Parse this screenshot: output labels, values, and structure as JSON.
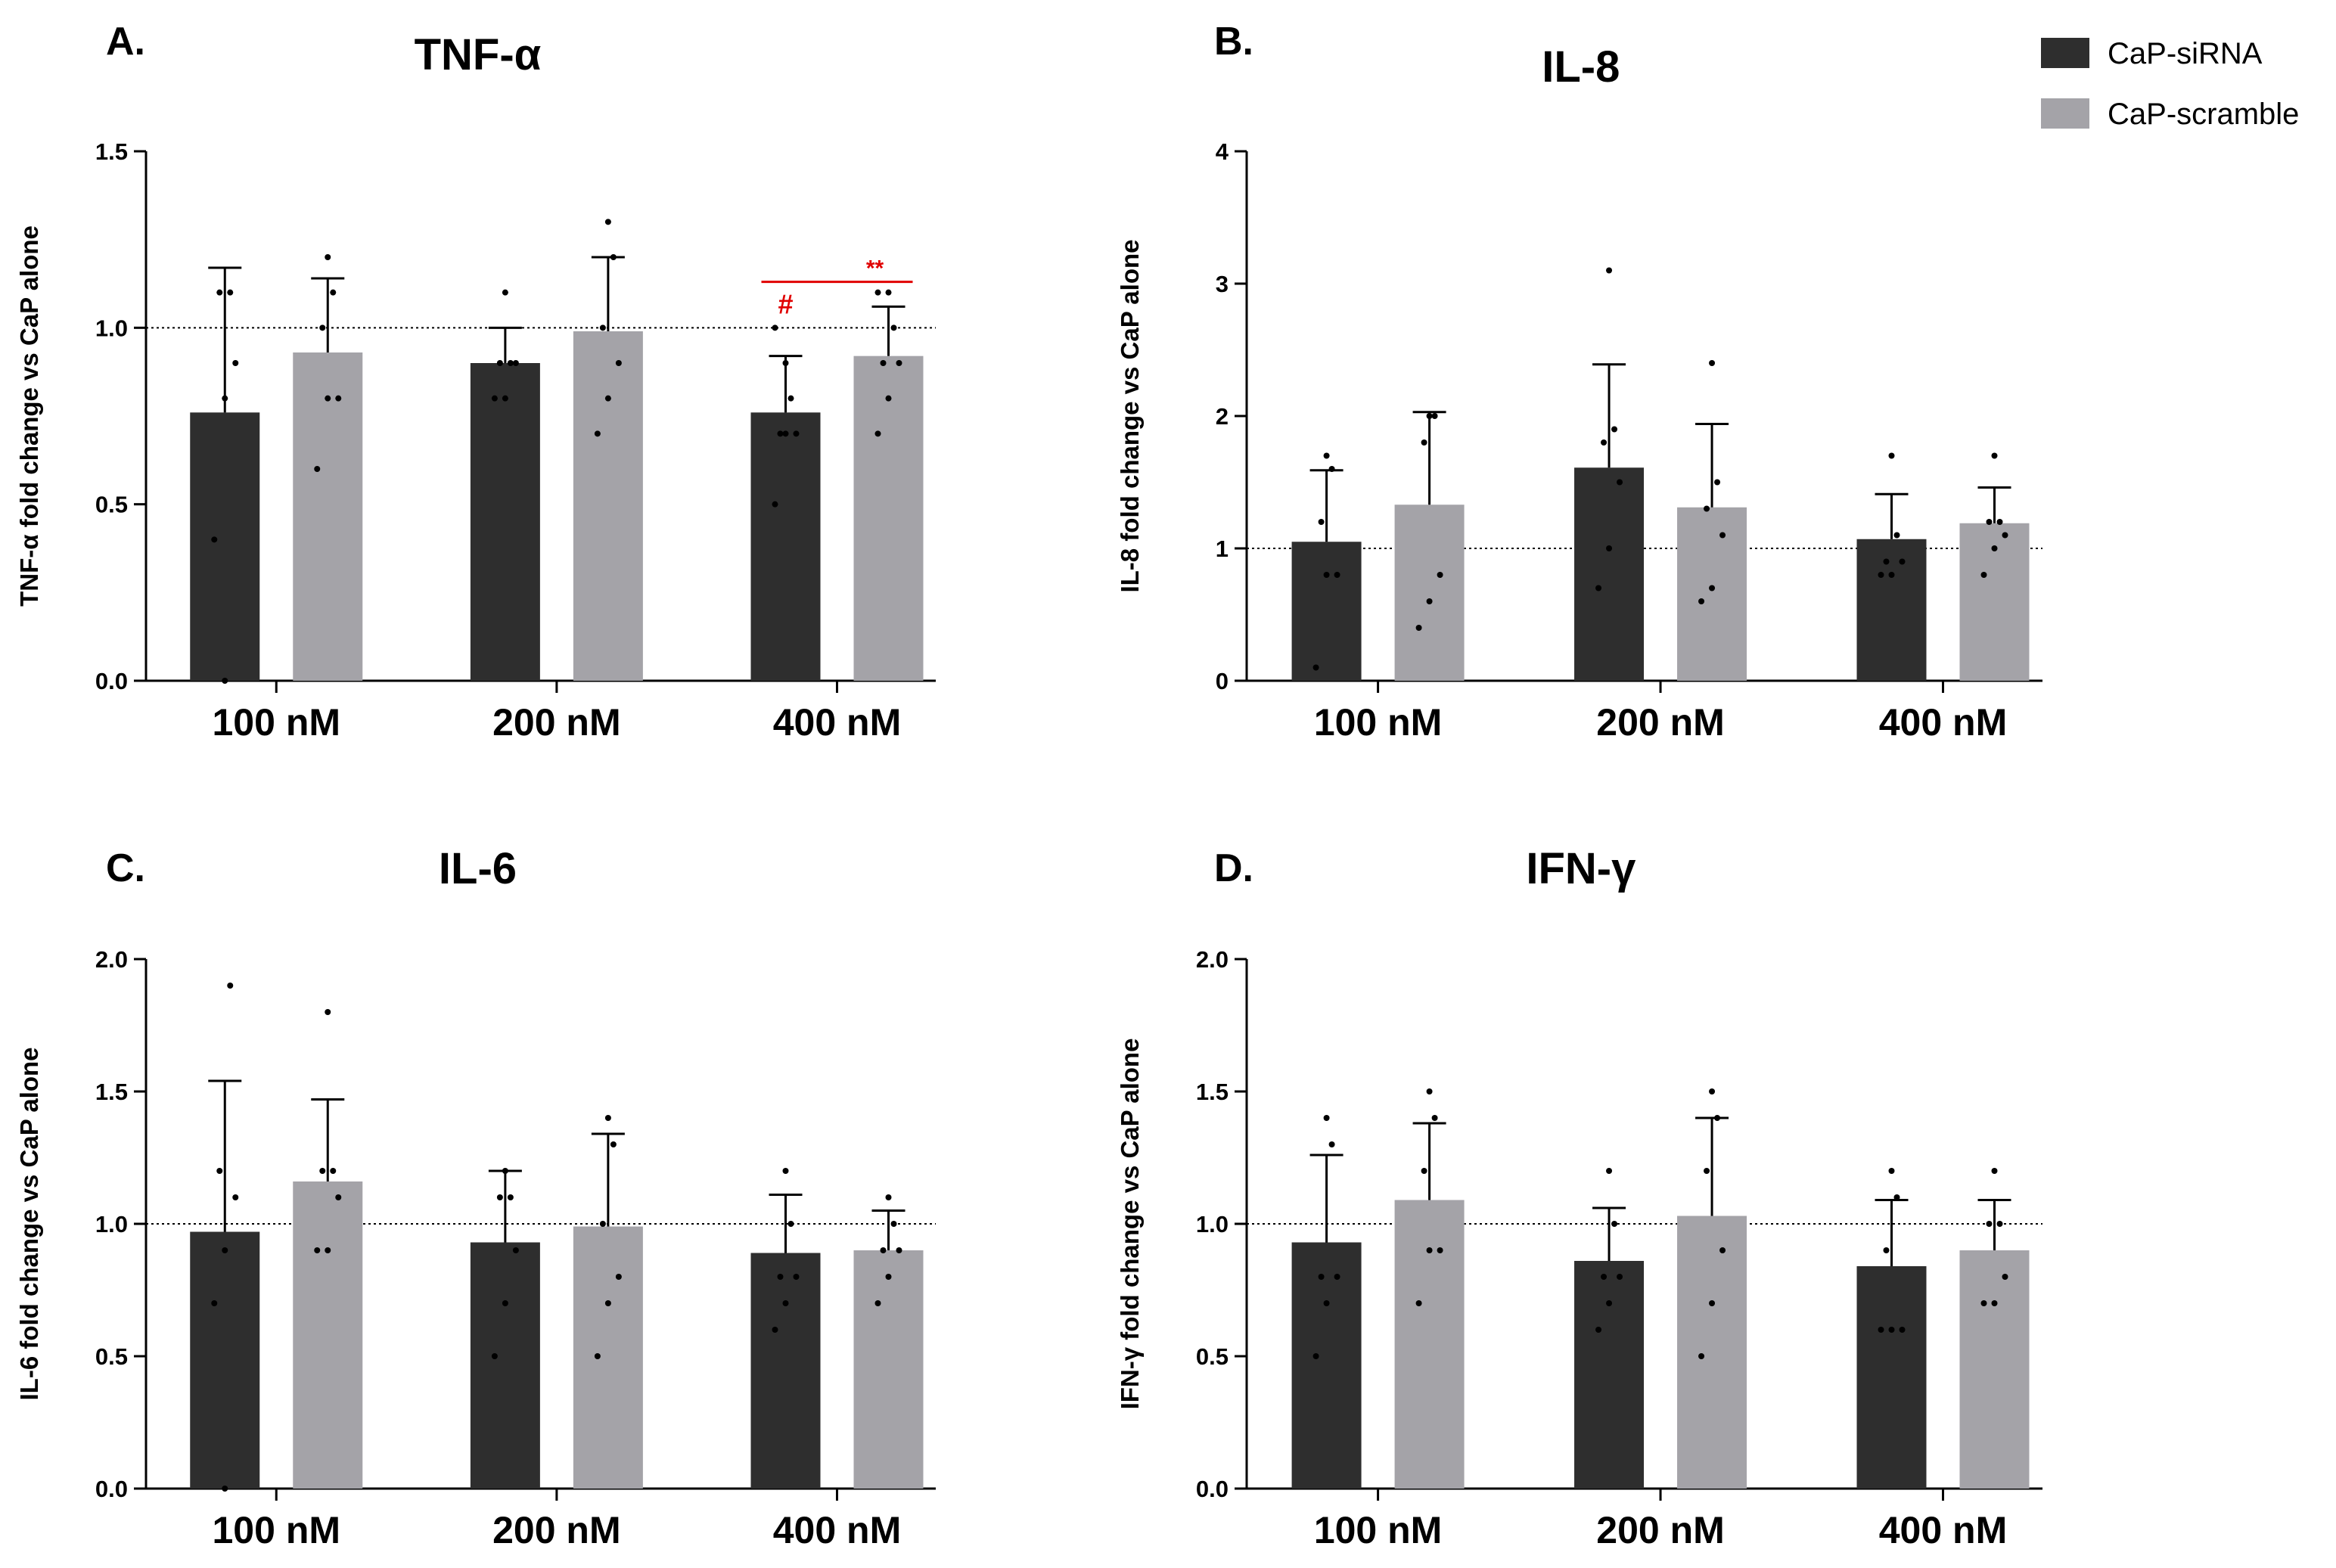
{
  "legend": {
    "position": "top-right",
    "items": [
      {
        "label": "CaP-siRNA",
        "color": "#2e2e2e"
      },
      {
        "label": "CaP-scramble",
        "color": "#a4a3a8"
      }
    ]
  },
  "reference_line": 1.0,
  "chart_data": [
    {
      "type": "bar",
      "panel": "A.",
      "title": "TNF-α",
      "ylabel": "TNF-α fold change vs CaP alone",
      "xlabel": "",
      "categories": [
        "100 nM",
        "200 nM",
        "400 nM"
      ],
      "ylim": [
        0,
        1.5
      ],
      "yticks": [
        0.0,
        0.5,
        1.0,
        1.5
      ],
      "ytick_labels": [
        "0.0",
        "0.5",
        "1.0",
        "1.5"
      ],
      "series": [
        {
          "name": "CaP-siRNA",
          "values": [
            0.76,
            0.9,
            0.76
          ],
          "error": [
            0.41,
            0.1,
            0.16
          ],
          "points": [
            [
              0.4,
              0.8,
              0.9,
              1.1,
              1.1,
              0.0
            ],
            [
              0.8,
              0.8,
              0.9,
              0.9,
              0.9,
              1.1
            ],
            [
              0.5,
              0.7,
              0.7,
              0.7,
              0.8,
              0.9,
              1.0
            ]
          ]
        },
        {
          "name": "CaP-scramble",
          "values": [
            0.93,
            0.99,
            0.92
          ],
          "error": [
            0.21,
            0.21,
            0.14
          ],
          "points": [
            [
              0.6,
              0.8,
              0.8,
              1.0,
              1.1,
              1.2
            ],
            [
              0.7,
              0.8,
              0.9,
              1.0,
              1.2,
              1.3
            ],
            [
              0.7,
              0.8,
              0.9,
              0.9,
              1.0,
              1.1,
              1.1
            ]
          ]
        }
      ],
      "annotations": [
        {
          "text": "#",
          "category": "400 nM",
          "series": "CaP-siRNA",
          "y": 1.04
        },
        {
          "text": "**",
          "bracket": [
            "400 nM CaP-siRNA",
            "400 nM CaP-scramble"
          ],
          "y": 1.13
        }
      ]
    },
    {
      "type": "bar",
      "panel": "B.",
      "title": "IL-8",
      "ylabel": "IL-8 fold change vs CaP alone",
      "xlabel": "",
      "categories": [
        "100 nM",
        "200 nM",
        "400 nM"
      ],
      "ylim": [
        0,
        4
      ],
      "yticks": [
        0,
        1,
        2,
        3,
        4
      ],
      "ytick_labels": [
        "0",
        "1",
        "2",
        "3",
        "4"
      ],
      "series": [
        {
          "name": "CaP-siRNA",
          "values": [
            1.05,
            1.61,
            1.07
          ],
          "error": [
            0.54,
            0.78,
            0.34
          ],
          "points": [
            [
              0.1,
              0.8,
              0.8,
              1.2,
              1.6,
              1.7
            ],
            [
              0.7,
              1.0,
              1.5,
              1.8,
              1.9,
              3.1
            ],
            [
              0.8,
              0.8,
              0.9,
              0.9,
              1.1,
              1.7
            ]
          ]
        },
        {
          "name": "CaP-scramble",
          "values": [
            1.33,
            1.31,
            1.19
          ],
          "error": [
            0.7,
            0.63,
            0.27
          ],
          "points": [
            [
              0.4,
              0.6,
              0.8,
              1.8,
              2.0,
              2.0
            ],
            [
              0.6,
              0.7,
              1.1,
              1.3,
              1.5,
              2.4
            ],
            [
              0.8,
              1.0,
              1.1,
              1.2,
              1.2,
              1.7
            ]
          ]
        }
      ]
    },
    {
      "type": "bar",
      "panel": "C.",
      "title": "IL-6",
      "ylabel": "IL-6 fold change vs CaP alone",
      "xlabel": "",
      "categories": [
        "100 nM",
        "200 nM",
        "400 nM"
      ],
      "ylim": [
        0,
        2.0
      ],
      "yticks": [
        0.0,
        0.5,
        1.0,
        1.5,
        2.0
      ],
      "ytick_labels": [
        "0.0",
        "0.5",
        "1.0",
        "1.5",
        "2.0"
      ],
      "series": [
        {
          "name": "CaP-siRNA",
          "values": [
            0.97,
            0.93,
            0.89
          ],
          "error": [
            0.57,
            0.27,
            0.22
          ],
          "points": [
            [
              0.7,
              0.9,
              1.1,
              1.2,
              1.9,
              0.0
            ],
            [
              0.5,
              0.7,
              0.9,
              1.1,
              1.1,
              1.2
            ],
            [
              0.6,
              0.7,
              0.8,
              0.8,
              1.0,
              1.2
            ]
          ]
        },
        {
          "name": "CaP-scramble",
          "values": [
            1.16,
            0.99,
            0.9
          ],
          "error": [
            0.31,
            0.35,
            0.15
          ],
          "points": [
            [
              0.9,
              0.9,
              1.1,
              1.2,
              1.2,
              1.8
            ],
            [
              0.5,
              0.7,
              0.8,
              1.0,
              1.3,
              1.4
            ],
            [
              0.7,
              0.8,
              0.9,
              0.9,
              1.0,
              1.1
            ]
          ]
        }
      ]
    },
    {
      "type": "bar",
      "panel": "D.",
      "title": "IFN-γ",
      "ylabel": "IFN-γ fold change vs CaP alone",
      "xlabel": "",
      "categories": [
        "100 nM",
        "200 nM",
        "400 nM"
      ],
      "ylim": [
        0,
        2.0
      ],
      "yticks": [
        0.0,
        0.5,
        1.0,
        1.5,
        2.0
      ],
      "ytick_labels": [
        "0.0",
        "0.5",
        "1.0",
        "1.5",
        "2.0"
      ],
      "series": [
        {
          "name": "CaP-siRNA",
          "values": [
            0.93,
            0.86,
            0.84
          ],
          "error": [
            0.33,
            0.2,
            0.25
          ],
          "points": [
            [
              0.5,
              0.7,
              0.8,
              0.8,
              1.3,
              1.4
            ],
            [
              0.6,
              0.7,
              0.8,
              0.8,
              1.0,
              1.2
            ],
            [
              0.6,
              0.6,
              0.6,
              0.9,
              1.1,
              1.2
            ]
          ]
        },
        {
          "name": "CaP-scramble",
          "values": [
            1.09,
            1.03,
            0.9
          ],
          "error": [
            0.29,
            0.37,
            0.19
          ],
          "points": [
            [
              0.7,
              0.9,
              0.9,
              1.2,
              1.4,
              1.5
            ],
            [
              0.5,
              0.7,
              0.9,
              1.2,
              1.4,
              1.5
            ],
            [
              0.7,
              0.7,
              0.8,
              1.0,
              1.0,
              1.2
            ]
          ]
        }
      ]
    }
  ]
}
